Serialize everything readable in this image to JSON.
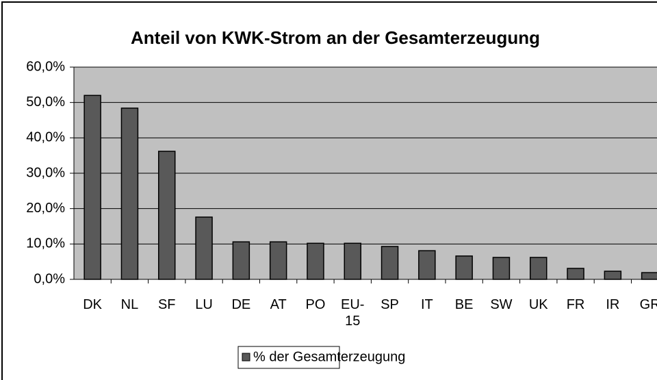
{
  "chart_data": {
    "type": "bar",
    "title": "Anteil von KWK-Strom an der Gesamterzeugung",
    "categories": [
      "DK",
      "NL",
      "SF",
      "LU",
      "DE",
      "AT",
      "PO",
      "EU-15",
      "SP",
      "IT",
      "BE",
      "SW",
      "UK",
      "FR",
      "IR",
      "GR"
    ],
    "series": [
      {
        "name": "% der Gesamterzeugung",
        "color": "#595959",
        "values": [
          52.0,
          48.4,
          36.2,
          17.6,
          10.6,
          10.6,
          10.2,
          10.2,
          9.3,
          8.1,
          6.6,
          6.2,
          6.2,
          3.1,
          2.3,
          1.9
        ]
      }
    ],
    "ylim": [
      0,
      60
    ],
    "yticks": [
      {
        "value": 0,
        "label": "0,0%"
      },
      {
        "value": 10,
        "label": "10,0%"
      },
      {
        "value": 20,
        "label": "20,0%"
      },
      {
        "value": 30,
        "label": "30,0%"
      },
      {
        "value": 40,
        "label": "40,0%"
      },
      {
        "value": 50,
        "label": "50,0%"
      },
      {
        "value": 60,
        "label": "60,0%"
      }
    ],
    "grid": true,
    "legend": "bottom"
  }
}
